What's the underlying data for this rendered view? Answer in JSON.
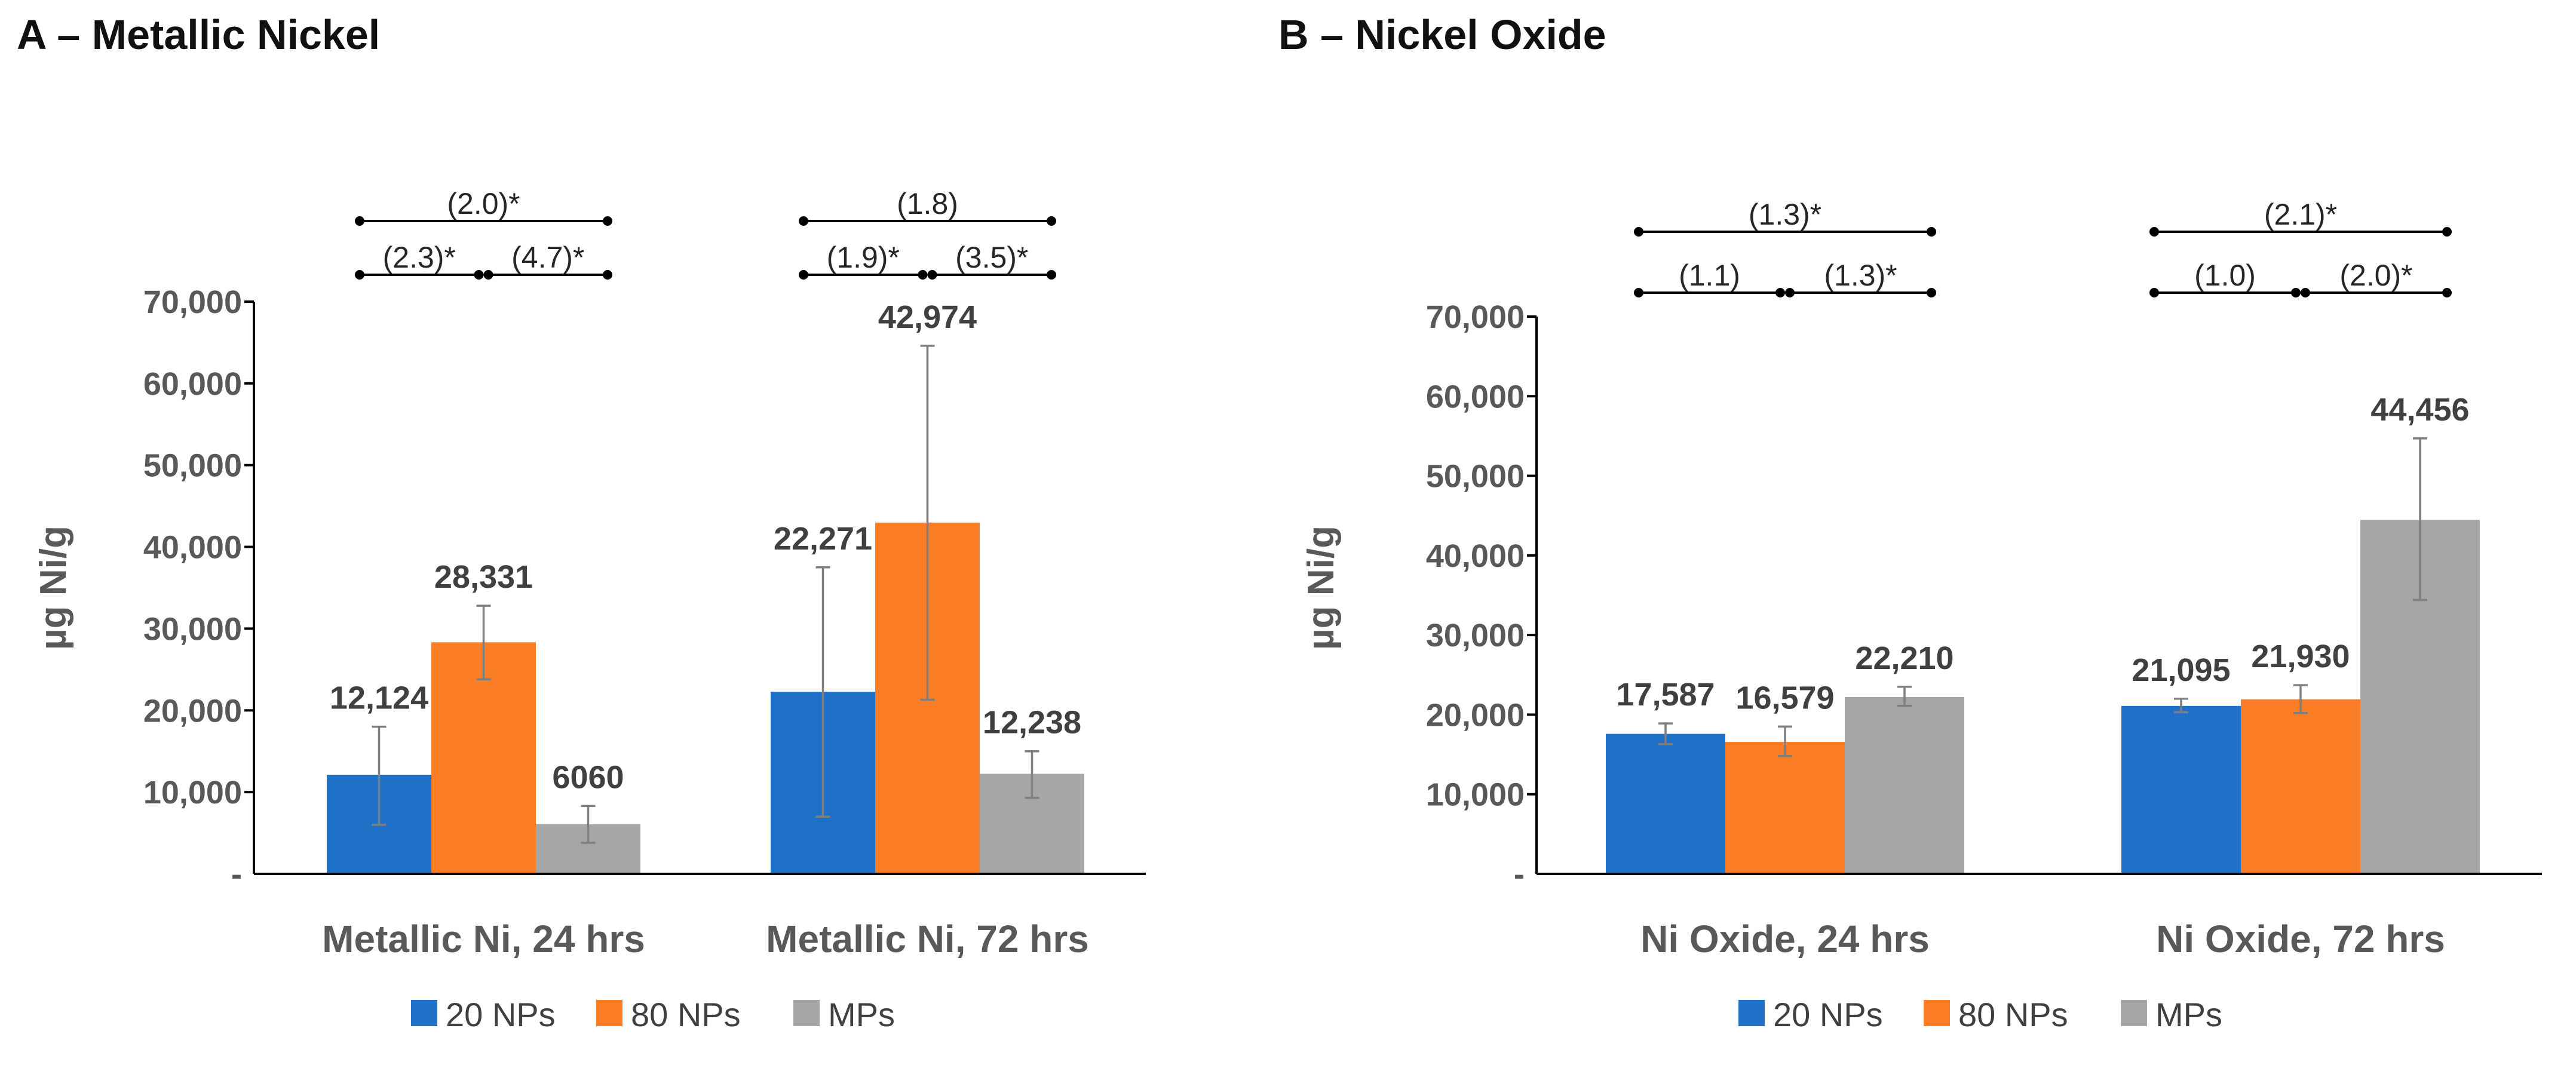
{
  "chart_data": [
    {
      "type": "bar",
      "title": "A – Metallic Nickel",
      "ylabel": "µg Ni/g",
      "xlabel": "",
      "ylim": [
        0,
        70000
      ],
      "yticks": [
        0,
        10000,
        20000,
        30000,
        40000,
        50000,
        60000,
        70000
      ],
      "ytick_labels": [
        "-",
        "10,000",
        "20,000",
        "30,000",
        "40,000",
        "50,000",
        "60,000",
        "70,000"
      ],
      "categories": [
        "Metallic Ni, 24 hrs",
        "Metallic Ni, 72 hrs"
      ],
      "series": [
        {
          "name": "20 NPs",
          "color": "#1f71c8",
          "values": [
            12124,
            22271
          ],
          "labels": [
            "12,124",
            "22,271"
          ],
          "err_low": [
            6000,
            7000
          ],
          "err_high": [
            18000,
            37500
          ]
        },
        {
          "name": "80 NPs",
          "color": "#fb7d25",
          "values": [
            28331,
            42974
          ],
          "labels": [
            "28,331",
            "42,974"
          ],
          "err_low": [
            23800,
            21300
          ],
          "err_high": [
            32800,
            64600
          ]
        },
        {
          "name": "MPs",
          "color": "#a6a6a6",
          "values": [
            6060,
            12238
          ],
          "labels": [
            "6060",
            "12,238"
          ],
          "err_low": [
            3800,
            9300
          ],
          "err_high": [
            8300,
            15000
          ]
        }
      ],
      "comparisons": [
        {
          "group": 0,
          "from": 0,
          "to": 2,
          "level": 2,
          "label": "(2.0)*"
        },
        {
          "group": 0,
          "from": 0,
          "to": 1,
          "level": 1,
          "label": "(2.3)*"
        },
        {
          "group": 0,
          "from": 1,
          "to": 2,
          "level": 1,
          "label": "(4.7)*"
        },
        {
          "group": 1,
          "from": 0,
          "to": 2,
          "level": 2,
          "label": "(1.8)"
        },
        {
          "group": 1,
          "from": 0,
          "to": 1,
          "level": 1,
          "label": "(1.9)*"
        },
        {
          "group": 1,
          "from": 1,
          "to": 2,
          "level": 1,
          "label": "(3.5)*"
        }
      ],
      "legend": [
        "20 NPs",
        "80 NPs",
        "MPs"
      ],
      "legend_position": "bottom",
      "grid": false
    },
    {
      "type": "bar",
      "title": "B – Nickel Oxide",
      "ylabel": "µg Ni/g",
      "xlabel": "",
      "ylim": [
        0,
        70000
      ],
      "yticks": [
        0,
        10000,
        20000,
        30000,
        40000,
        50000,
        60000,
        70000
      ],
      "ytick_labels": [
        "-",
        "10,000",
        "20,000",
        "30,000",
        "40,000",
        "50,000",
        "60,000",
        "70,000"
      ],
      "categories": [
        "Ni Oxide, 24 hrs",
        "Ni Oxide, 72 hrs"
      ],
      "series": [
        {
          "name": "20 NPs",
          "color": "#1f71c8",
          "values": [
            17587,
            21095
          ],
          "labels": [
            "17,587",
            "21,095"
          ],
          "err_low": [
            16300,
            20300
          ],
          "err_high": [
            18900,
            22000
          ]
        },
        {
          "name": "80 NPs",
          "color": "#fb7d25",
          "values": [
            16579,
            21930
          ],
          "labels": [
            "16,579",
            "21,930"
          ],
          "err_low": [
            14800,
            20200
          ],
          "err_high": [
            18500,
            23700
          ]
        },
        {
          "name": "MPs",
          "color": "#a6a6a6",
          "values": [
            22210,
            44456
          ],
          "labels": [
            "22,210",
            "44,456"
          ],
          "err_low": [
            21100,
            34400
          ],
          "err_high": [
            23500,
            54700
          ]
        }
      ],
      "comparisons": [
        {
          "group": 0,
          "from": 0,
          "to": 2,
          "level": 2,
          "label": "(1.3)*"
        },
        {
          "group": 0,
          "from": 0,
          "to": 1,
          "level": 1,
          "label": "(1.1)"
        },
        {
          "group": 0,
          "from": 1,
          "to": 2,
          "level": 1,
          "label": "(1.3)*"
        },
        {
          "group": 1,
          "from": 0,
          "to": 2,
          "level": 2,
          "label": "(2.1)*"
        },
        {
          "group": 1,
          "from": 0,
          "to": 1,
          "level": 1,
          "label": "(1.0)"
        },
        {
          "group": 1,
          "from": 1,
          "to": 2,
          "level": 1,
          "label": "(2.0)*"
        }
      ],
      "legend": [
        "20 NPs",
        "80 NPs",
        "MPs"
      ],
      "legend_position": "bottom",
      "grid": false
    }
  ]
}
